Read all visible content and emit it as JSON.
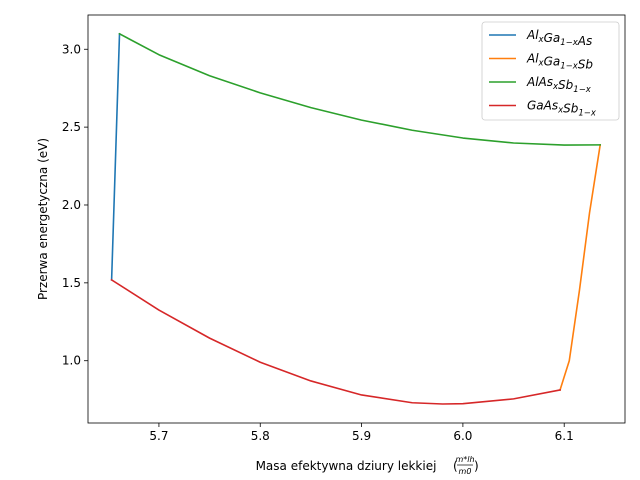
{
  "chart_data": {
    "type": "line",
    "xlabel": "Masa efektywna dziury lekkiej",
    "xlabel_fraction": {
      "numerator": "m*lh",
      "denominator": "m0"
    },
    "ylabel": "Przerwa energetyczna (eV)",
    "xlim": [
      5.63,
      6.16
    ],
    "ylim": [
      0.6,
      3.22
    ],
    "xticks": [
      5.7,
      5.8,
      5.9,
      6.0,
      6.1
    ],
    "xtick_labels": [
      "5.7",
      "5.8",
      "5.9",
      "6.0",
      "6.1"
    ],
    "yticks": [
      1.0,
      1.5,
      2.0,
      2.5,
      3.0
    ],
    "ytick_labels": [
      "1.0",
      "1.5",
      "2.0",
      "2.5",
      "3.0"
    ],
    "grid": false,
    "legend_position": "top-right",
    "series": [
      {
        "name": "AlxGa1-xAs",
        "label_parts": [
          [
            "Al",
            ""
          ],
          [
            "x",
            "sub"
          ],
          [
            "Ga",
            ""
          ],
          [
            "1−x",
            "sub"
          ],
          [
            "As",
            ""
          ]
        ],
        "color": "#1f77b4",
        "x": [
          5.6533,
          5.6611
        ],
        "y": [
          1.519,
          3.099
        ]
      },
      {
        "name": "AlxGa1-xSb",
        "label_parts": [
          [
            "Al",
            ""
          ],
          [
            "x",
            "sub"
          ],
          [
            "Ga",
            ""
          ],
          [
            "1−x",
            "sub"
          ],
          [
            "Sb",
            ""
          ]
        ],
        "color": "#ff7f0e",
        "x": [
          6.0959,
          6.105,
          6.115,
          6.125,
          6.1355
        ],
        "y": [
          0.812,
          1.0,
          1.45,
          1.95,
          2.386
        ]
      },
      {
        "name": "AlAsxSb1-x",
        "label_parts": [
          [
            "AlAs",
            ""
          ],
          [
            "x",
            "sub"
          ],
          [
            "Sb",
            ""
          ],
          [
            "1−x",
            "sub"
          ]
        ],
        "color": "#2ca02c",
        "x": [
          5.6611,
          5.7,
          5.75,
          5.8,
          5.85,
          5.9,
          5.95,
          6.0,
          6.05,
          6.1,
          6.1355
        ],
        "y": [
          3.099,
          2.965,
          2.83,
          2.72,
          2.625,
          2.545,
          2.48,
          2.43,
          2.398,
          2.385,
          2.386
        ]
      },
      {
        "name": "GaAsxSb1-x",
        "label_parts": [
          [
            "GaAs",
            ""
          ],
          [
            "x",
            "sub"
          ],
          [
            "Sb",
            ""
          ],
          [
            "1−x",
            "sub"
          ]
        ],
        "color": "#d62728",
        "x": [
          5.6533,
          5.7,
          5.75,
          5.8,
          5.85,
          5.9,
          5.95,
          5.98,
          6.0,
          6.05,
          6.0959
        ],
        "y": [
          1.519,
          1.325,
          1.145,
          0.99,
          0.87,
          0.78,
          0.73,
          0.722,
          0.724,
          0.755,
          0.812
        ]
      }
    ]
  }
}
